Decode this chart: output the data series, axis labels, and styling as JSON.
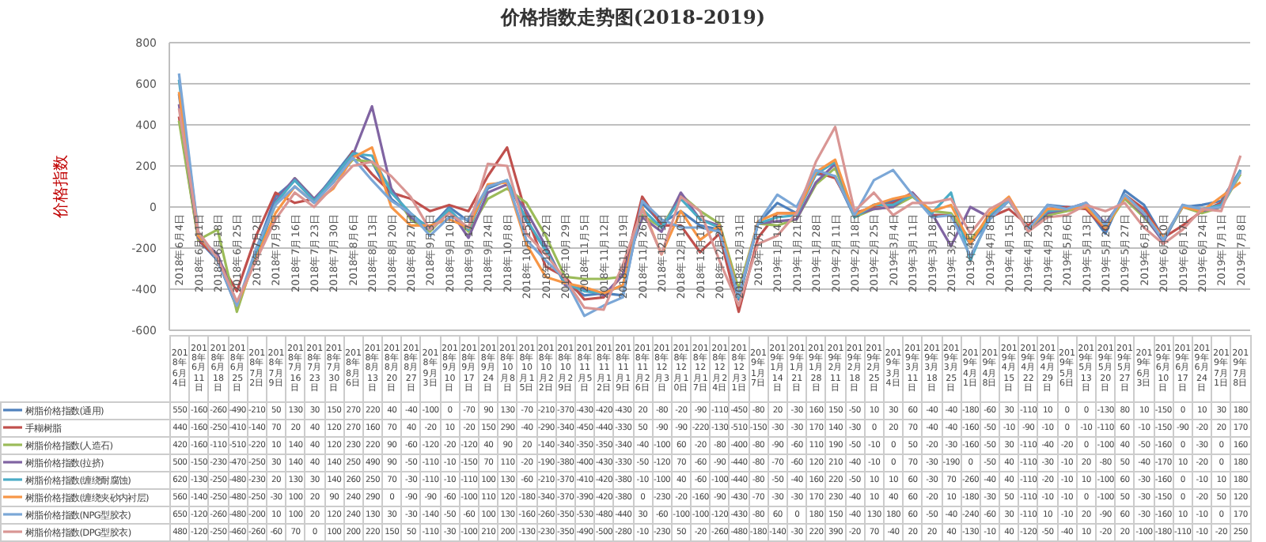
{
  "chart_data": {
    "type": "line",
    "title": "价格指数走势图(2018-2019)",
    "ylabel": "价格指数",
    "categories": [
      "2018年6月4日",
      "2018年6月11日",
      "2018年6月18日",
      "2018年6月25日",
      "2018年7月2日",
      "2018年7月9日",
      "2018年7月16日",
      "2018年7月23日",
      "2018年7月30日",
      "2018年8月6日",
      "2018年8月13日",
      "2018年8月20日",
      "2018年8月27日",
      "2018年9月3日",
      "2018年9月10日",
      "2018年9月17日",
      "2018年9月24日",
      "2018年10月8日",
      "2018年10月15日",
      "2018年10月22日",
      "2018年10月29日",
      "2018年11月5日",
      "2018年11月12日",
      "2018年11月19日",
      "2018年11月26日",
      "2018年12月3日",
      "2018年12月10日",
      "2018年12月17日",
      "2018年12月24日",
      "2018年12月31日",
      "2019年1月7日",
      "2019年1月14日",
      "2019年1月21日",
      "2019年1月28日",
      "2019年2月11日",
      "2019年2月18日",
      "2019年2月25日",
      "2019年3月4日",
      "2019年3月11日",
      "2019年3月18日",
      "2019年3月25日",
      "2019年4月1日",
      "2019年4月8日",
      "2019年4月15日",
      "2019年4月22日",
      "2019年4月29日",
      "2019年5月6日",
      "2019年5月13日",
      "2019年5月20日",
      "2019年5月27日",
      "2019年6月3日",
      "2019年6月10日",
      "2019年6月17日",
      "2019年6月24日",
      "2019年7月1日",
      "2019年7月8日"
    ],
    "series": [
      {
        "name": "树脂价格指数(通用)",
        "color": "#4f81bd",
        "values": [
          550,
          -160,
          -260,
          -490,
          -210,
          50,
          130,
          30,
          150,
          270,
          220,
          40,
          -40,
          -100,
          0,
          -70,
          90,
          130,
          -70,
          -210,
          -370,
          -430,
          -420,
          -430,
          20,
          -80,
          -20,
          -90,
          -110,
          -450,
          -80,
          20,
          -30,
          160,
          150,
          -50,
          10,
          30,
          60,
          -40,
          -40,
          -180,
          -60,
          30,
          -110,
          10,
          0,
          0,
          -130,
          80,
          10,
          -150,
          0,
          10,
          30,
          180
        ]
      },
      {
        "name": "手糊树脂",
        "color": "#c0504d",
        "values": [
          440,
          -160,
          -250,
          -410,
          -140,
          70,
          20,
          40,
          120,
          270,
          160,
          70,
          40,
          -20,
          10,
          -20,
          150,
          290,
          -40,
          -290,
          -340,
          -450,
          -440,
          -330,
          50,
          -90,
          -90,
          -220,
          -130,
          -510,
          -150,
          -30,
          -30,
          170,
          140,
          -30,
          0,
          20,
          70,
          -40,
          -40,
          -160,
          -50,
          -10,
          -90,
          -10,
          0,
          -10,
          -110,
          60,
          -10,
          -150,
          -90,
          -20,
          20,
          170
        ]
      },
      {
        "name": "树脂价格指数(人造石)",
        "color": "#9bbb59",
        "values": [
          420,
          -160,
          -110,
          -510,
          -220,
          10,
          140,
          40,
          120,
          230,
          220,
          90,
          -60,
          -120,
          -20,
          -120,
          40,
          90,
          20,
          -140,
          -340,
          -350,
          -350,
          -340,
          -40,
          -100,
          60,
          -20,
          -80,
          -400,
          -80,
          -90,
          -60,
          110,
          190,
          -50,
          -10,
          0,
          50,
          -20,
          -30,
          -160,
          -50,
          30,
          -110,
          -40,
          -20,
          0,
          -100,
          40,
          -50,
          -160,
          0,
          -30,
          0,
          160
        ]
      },
      {
        "name": "树脂价格指数(拉挤)",
        "color": "#8064a2",
        "values": [
          500,
          -150,
          -230,
          -470,
          -250,
          30,
          140,
          40,
          140,
          250,
          490,
          90,
          -50,
          -110,
          -10,
          -150,
          70,
          110,
          -20,
          -190,
          -380,
          -400,
          -430,
          -330,
          -50,
          -120,
          70,
          -60,
          -90,
          -440,
          -80,
          -70,
          -60,
          120,
          210,
          -40,
          -10,
          0,
          70,
          -30,
          -190,
          0,
          -50,
          40,
          -110,
          -30,
          -10,
          20,
          -80,
          50,
          -40,
          -170,
          10,
          -20,
          0,
          180
        ]
      },
      {
        "name": "树脂价格指数(缠绕耐腐蚀)",
        "color": "#4bacc6",
        "values": [
          620,
          -130,
          -250,
          -480,
          -230,
          20,
          130,
          30,
          140,
          260,
          250,
          70,
          -30,
          -110,
          -10,
          -110,
          100,
          130,
          -60,
          -210,
          -370,
          -410,
          -420,
          -380,
          -10,
          -100,
          40,
          -60,
          -100,
          -440,
          -80,
          -50,
          -40,
          160,
          220,
          -50,
          10,
          10,
          60,
          -30,
          70,
          -260,
          -40,
          40,
          -110,
          -20,
          -10,
          10,
          -100,
          60,
          -30,
          -160,
          0,
          -10,
          10,
          180
        ]
      },
      {
        "name": "树脂价格指数(缠绕夹砂内衬层)",
        "color": "#f79646",
        "values": [
          560,
          -140,
          -250,
          -480,
          -250,
          -30,
          100,
          20,
          90,
          240,
          290,
          0,
          -90,
          -90,
          -60,
          -100,
          110,
          120,
          -180,
          -340,
          -370,
          -390,
          -420,
          -380,
          0,
          -230,
          -20,
          -160,
          -90,
          -430,
          -70,
          -30,
          -30,
          170,
          230,
          -40,
          10,
          40,
          60,
          -20,
          10,
          -180,
          -30,
          50,
          -110,
          -10,
          -10,
          0,
          -100,
          50,
          -30,
          -150,
          0,
          -20,
          50,
          120
        ]
      },
      {
        "name": "树脂价格指数(NPG型胶衣)",
        "color": "#7ba7d7",
        "values": [
          650,
          -120,
          -260,
          -480,
          -200,
          10,
          100,
          20,
          120,
          240,
          130,
          30,
          -30,
          -140,
          -50,
          -60,
          100,
          130,
          -160,
          -260,
          -350,
          -530,
          -480,
          -440,
          30,
          -60,
          -100,
          -100,
          -120,
          -430,
          -80,
          60,
          0,
          180,
          150,
          -40,
          130,
          180,
          60,
          -50,
          -40,
          -240,
          -60,
          30,
          -110,
          10,
          -10,
          20,
          -90,
          60,
          -30,
          -160,
          10,
          -10,
          0,
          170
        ]
      },
      {
        "name": "树脂价格指数(DPG型胶衣)",
        "color": "#d99694",
        "values": [
          480,
          -120,
          -250,
          -460,
          -260,
          -60,
          70,
          0,
          100,
          200,
          220,
          150,
          50,
          -110,
          -30,
          -100,
          210,
          200,
          -130,
          -230,
          -350,
          -490,
          -500,
          -280,
          -10,
          -230,
          50,
          -20,
          -260,
          -480,
          -180,
          -140,
          -30,
          220,
          390,
          -20,
          70,
          -40,
          20,
          20,
          40,
          -130,
          -10,
          40,
          -120,
          -50,
          -40,
          10,
          -20,
          20,
          -100,
          -180,
          -110,
          -10,
          -20,
          250
        ]
      }
    ],
    "ylim": [
      -600,
      800
    ],
    "yticks": [
      -600,
      -400,
      -200,
      0,
      200,
      400,
      600,
      800
    ],
    "grid": "y",
    "legend": "bottom",
    "data_labels": true
  }
}
